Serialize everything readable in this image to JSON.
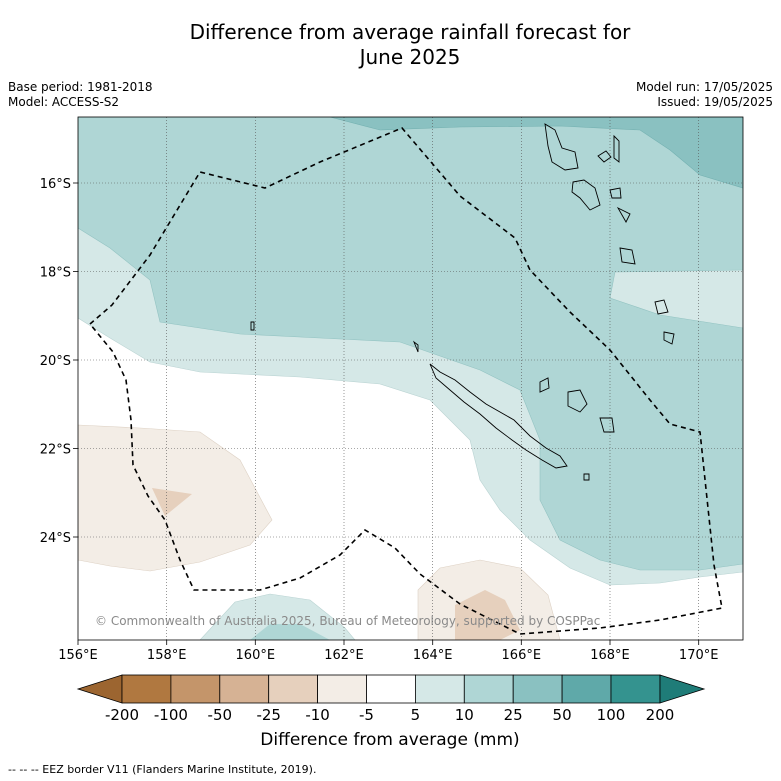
{
  "title_line1": "Difference from average rainfall forecast for",
  "title_line2": "June 2025",
  "base_period": "Base period: 1981-2018",
  "model": "Model: ACCESS-S2",
  "model_run": "Model run: 17/05/2025",
  "issued": "Issued: 19/05/2025",
  "copyright": "© Commonwealth of Australia 2025, Bureau of Meteorology, supported by COSPPac",
  "footnote": "-- -- -- EEZ border V11 (Flanders Marine Institute, 2019).",
  "map": {
    "lon_range": [
      156,
      171
    ],
    "lat_range": [
      -26.3,
      -14.2
    ],
    "lon_ticks": [
      "156°E",
      "158°E",
      "160°E",
      "162°E",
      "164°E",
      "166°E",
      "168°E",
      "170°E"
    ],
    "lat_ticks": [
      "16°S",
      "18°S",
      "20°S",
      "22°S",
      "24°S"
    ],
    "grid": true
  },
  "colorbar": {
    "title": "Difference from average (mm)",
    "labels": [
      "-200",
      "-100",
      "-50",
      "-25",
      "-10",
      "-5",
      "5",
      "10",
      "25",
      "50",
      "100",
      "200"
    ],
    "colors": [
      "#9c6530",
      "#b07840",
      "#c4956a",
      "#d6b294",
      "#e6d0bd",
      "#f3ede6",
      "#ffffff",
      "#d5e8e7",
      "#afd6d5",
      "#8ac1c1",
      "#5fa9a9",
      "#34938f",
      "#1f7c78"
    ]
  }
}
